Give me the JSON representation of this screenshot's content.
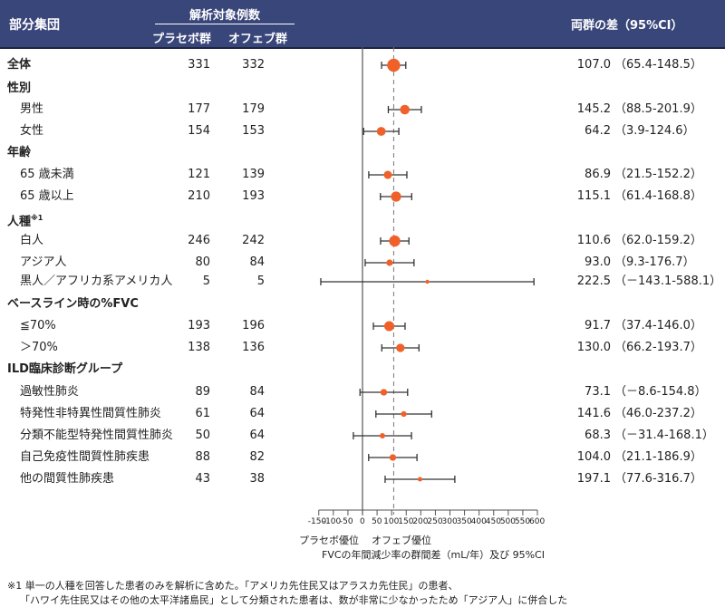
{
  "header": {
    "subgroup": "部分集団",
    "n_title": "解析対象例数",
    "placebo": "プラセボ群",
    "ofev": "オフェブ群",
    "diff": "両群の差（95%CI）"
  },
  "rows": [
    {
      "label": "全体",
      "type": "head",
      "np": "331",
      "no": "332",
      "est": "107.0",
      "ci": "（65.4-148.5）"
    },
    {
      "label": "性別",
      "type": "head"
    },
    {
      "label": "男性",
      "type": "sub",
      "np": "177",
      "no": "179",
      "est": "145.2",
      "ci": "（88.5-201.9）"
    },
    {
      "label": "女性",
      "type": "sub",
      "np": "154",
      "no": "153",
      "est": "64.2",
      "ci": "（3.9-124.6）"
    },
    {
      "label": "年齢",
      "type": "head"
    },
    {
      "label": "65 歳未満",
      "type": "sub",
      "np": "121",
      "no": "139",
      "est": "86.9",
      "ci": "（21.5-152.2）"
    },
    {
      "label": "65 歳以上",
      "type": "sub",
      "np": "210",
      "no": "193",
      "est": "115.1",
      "ci": "（61.4-168.8）"
    },
    {
      "label": "人種",
      "sup": "※1",
      "type": "head"
    },
    {
      "label": "白人",
      "type": "sub",
      "np": "246",
      "no": "242",
      "est": "110.6",
      "ci": "（62.0-159.2）"
    },
    {
      "label": "アジア人",
      "type": "sub",
      "np": "80",
      "no": "84",
      "est": "93.0",
      "ci": "（9.3-176.7）"
    },
    {
      "label": "黒人／アフリカ系アメリカ人",
      "type": "sub",
      "np": "5",
      "no": "5",
      "est": "222.5",
      "ci": "（－143.1-588.1）"
    },
    {
      "label": "ベースライン時の%FVC",
      "type": "head"
    },
    {
      "label": "≦70%",
      "type": "sub",
      "np": "193",
      "no": "196",
      "est": "91.7",
      "ci": "（37.4-146.0）"
    },
    {
      "label": "＞70%",
      "type": "sub",
      "np": "138",
      "no": "136",
      "est": "130.0",
      "ci": "（66.2-193.7）"
    },
    {
      "label": "ILD臨床診断グループ",
      "type": "head"
    },
    {
      "label": "過敏性肺炎",
      "type": "sub",
      "np": "89",
      "no": "84",
      "est": "73.1",
      "ci": "（－8.6-154.8）"
    },
    {
      "label": "特発性非特異性間質性肺炎",
      "type": "sub",
      "np": "61",
      "no": "64",
      "est": "141.6",
      "ci": "（46.0-237.2）"
    },
    {
      "label": "分類不能型特発性間質性肺炎",
      "type": "sub",
      "np": "50",
      "no": "64",
      "est": "68.3",
      "ci": "（－31.4-168.1）"
    },
    {
      "label": "自己免疫性間質性肺疾患",
      "type": "sub",
      "np": "88",
      "no": "82",
      "est": "104.0",
      "ci": "（21.1-186.9）"
    },
    {
      "label": "他の間質性肺疾患",
      "type": "sub",
      "np": "43",
      "no": "38",
      "est": "197.1",
      "ci": "（77.6-316.7）"
    }
  ],
  "axis": {
    "favor_placebo": "プラセボ優位",
    "favor_ofev": "オフェブ優位",
    "title": "FVCの年間減少率の群間差（mL/年）及び 95%CI"
  },
  "footnote": {
    "line1": "※1 単一の人種を回答した患者のみを解析に含めた。「アメリカ先住民又はアラスカ先住民」の患者、",
    "line2": "「ハワイ先住民又はその他の太平洋諸島民」として分類された患者は、数が非常に少なかったため「アジア人」に併合した"
  },
  "colors": {
    "header_bg": "#39467a",
    "marker": "#f0612a",
    "ci_line": "#333333"
  },
  "chart_data": {
    "type": "forest",
    "title": "",
    "xlabel": "FVCの年間減少率の群間差（mL/年）及び 95%CI",
    "xlim": [
      -150,
      600
    ],
    "xticks": [
      -150,
      -100,
      -50,
      0,
      50,
      100,
      150,
      200,
      250,
      300,
      350,
      400,
      450,
      500,
      550,
      600
    ],
    "reference_line": 0,
    "overall_line": 107.0,
    "annotations": [
      "プラセボ優位",
      "オフェブ優位"
    ],
    "points": [
      {
        "label": "全体",
        "est": 107.0,
        "lo": 65.4,
        "hi": 148.5,
        "n_placebo": 331,
        "n_ofev": 332
      },
      {
        "label": "男性",
        "est": 145.2,
        "lo": 88.5,
        "hi": 201.9,
        "n_placebo": 177,
        "n_ofev": 179
      },
      {
        "label": "女性",
        "est": 64.2,
        "lo": 3.9,
        "hi": 124.6,
        "n_placebo": 154,
        "n_ofev": 153
      },
      {
        "label": "65 歳未満",
        "est": 86.9,
        "lo": 21.5,
        "hi": 152.2,
        "n_placebo": 121,
        "n_ofev": 139
      },
      {
        "label": "65 歳以上",
        "est": 115.1,
        "lo": 61.4,
        "hi": 168.8,
        "n_placebo": 210,
        "n_ofev": 193
      },
      {
        "label": "白人",
        "est": 110.6,
        "lo": 62.0,
        "hi": 159.2,
        "n_placebo": 246,
        "n_ofev": 242
      },
      {
        "label": "アジア人",
        "est": 93.0,
        "lo": 9.3,
        "hi": 176.7,
        "n_placebo": 80,
        "n_ofev": 84
      },
      {
        "label": "黒人／アフリカ系アメリカ人",
        "est": 222.5,
        "lo": -143.1,
        "hi": 588.1,
        "n_placebo": 5,
        "n_ofev": 5
      },
      {
        "label": "≦70%",
        "est": 91.7,
        "lo": 37.4,
        "hi": 146.0,
        "n_placebo": 193,
        "n_ofev": 196
      },
      {
        "label": "＞70%",
        "est": 130.0,
        "lo": 66.2,
        "hi": 193.7,
        "n_placebo": 138,
        "n_ofev": 136
      },
      {
        "label": "過敏性肺炎",
        "est": 73.1,
        "lo": -8.6,
        "hi": 154.8,
        "n_placebo": 89,
        "n_ofev": 84
      },
      {
        "label": "特発性非特異性間質性肺炎",
        "est": 141.6,
        "lo": 46.0,
        "hi": 237.2,
        "n_placebo": 61,
        "n_ofev": 64
      },
      {
        "label": "分類不能型特発性間質性肺炎",
        "est": 68.3,
        "lo": -31.4,
        "hi": 168.1,
        "n_placebo": 50,
        "n_ofev": 64
      },
      {
        "label": "自己免疫性間質性肺疾患",
        "est": 104.0,
        "lo": 21.1,
        "hi": 186.9,
        "n_placebo": 88,
        "n_ofev": 82
      },
      {
        "label": "他の間質性肺疾患",
        "est": 197.1,
        "lo": 77.6,
        "hi": 316.7,
        "n_placebo": 43,
        "n_ofev": 38
      }
    ]
  }
}
